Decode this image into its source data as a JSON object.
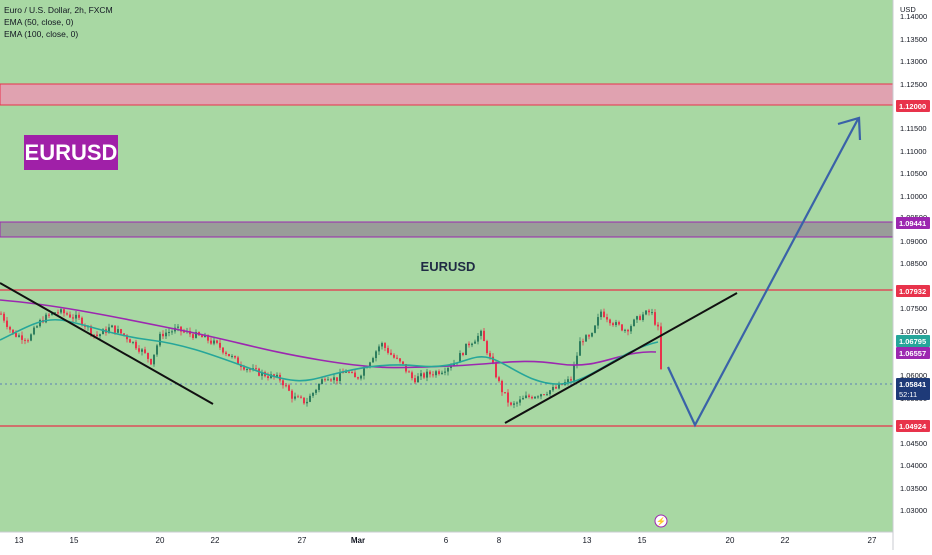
{
  "header": {
    "symbol_line": "Euro / U.S. Dollar, 2h, FXCM",
    "indicators": [
      "EMA (50, close, 0)",
      "EMA (100, close, 0)"
    ]
  },
  "title_badge": "EURUSD",
  "center_label": "EURUSD",
  "price_axis": {
    "currency": "USD",
    "ticks": [
      "1.14000",
      "1.13500",
      "1.13000",
      "1.12500",
      "1.11500",
      "1.11000",
      "1.10500",
      "1.10000",
      "1.09500",
      "1.09000",
      "1.08500",
      "1.07500",
      "1.07000",
      "1.06000",
      "1.05500",
      "1.04500",
      "1.04000",
      "1.03500",
      "1.03000"
    ]
  },
  "price_tags": {
    "resistance_top": "1.12000",
    "resistance_mid": "1.09441",
    "resistance_low": "1.07932",
    "ema_50": "1.06795",
    "ema_100": "1.06557",
    "last_price": "1.05841",
    "countdown": "52:11",
    "support": "1.04924"
  },
  "time_axis": {
    "labels": [
      "13",
      "15",
      "20",
      "22",
      "27",
      "Mar",
      "6",
      "8",
      "13",
      "15",
      "20",
      "22",
      "27"
    ]
  },
  "colors": {
    "background_green": "#a8d8a3",
    "resistance_zone": "#e0a2b0",
    "gray_zone": "#999d99",
    "level_line": "#e8334b",
    "purple": "#9c27b0",
    "ema_50": "#26a69a",
    "ema_100": "#9c27b0",
    "up_candle": "#2e7d5e",
    "down_candle": "#e8334b",
    "projection_arrow": "#3a62a8",
    "trend_line": "#111111"
  },
  "chart_data": {
    "type": "candlestick",
    "title": "Euro / U.S. Dollar, 2h, FXCM",
    "ylabel": "USD",
    "ylim": [
      1.025,
      1.144
    ],
    "levels": [
      1.12,
      1.09441,
      1.07932,
      1.04924
    ],
    "zones": [
      {
        "from": 1.12,
        "to": 1.124
      },
      {
        "from": 1.0913,
        "to": 1.0946
      }
    ],
    "series": [
      {
        "name": "EMA (50, close, 0)",
        "last": 1.06795
      },
      {
        "name": "EMA (100, close, 0)",
        "last": 1.06557
      }
    ],
    "last_price": 1.05841,
    "close_path": [
      [
        0,
        1.074
      ],
      [
        12,
        1.0695
      ],
      [
        28,
        1.0685
      ],
      [
        40,
        1.0725
      ],
      [
        55,
        1.0745
      ],
      [
        65,
        1.074
      ],
      [
        80,
        1.0725
      ],
      [
        95,
        1.069
      ],
      [
        110,
        1.071
      ],
      [
        125,
        1.069
      ],
      [
        140,
        1.066
      ],
      [
        150,
        1.0635
      ],
      [
        160,
        1.0695
      ],
      [
        175,
        1.0705
      ],
      [
        190,
        1.0695
      ],
      [
        205,
        1.0685
      ],
      [
        220,
        1.0665
      ],
      [
        235,
        1.0635
      ],
      [
        250,
        1.0615
      ],
      [
        265,
        1.0605
      ],
      [
        280,
        1.0595
      ],
      [
        292,
        1.0555
      ],
      [
        305,
        1.0545
      ],
      [
        315,
        1.0575
      ],
      [
        325,
        1.0605
      ],
      [
        335,
        1.0595
      ],
      [
        345,
        1.0615
      ],
      [
        355,
        1.0595
      ],
      [
        368,
        1.0635
      ],
      [
        380,
        1.0675
      ],
      [
        392,
        1.0645
      ],
      [
        402,
        1.0625
      ],
      [
        412,
        1.0595
      ],
      [
        425,
        1.0605
      ],
      [
        440,
        1.0615
      ],
      [
        455,
        1.0635
      ],
      [
        468,
        1.0675
      ],
      [
        480,
        1.0695
      ],
      [
        490,
        1.0635
      ],
      [
        500,
        1.0575
      ],
      [
        510,
        1.0535
      ],
      [
        525,
        1.0555
      ],
      [
        540,
        1.0565
      ],
      [
        555,
        1.0575
      ],
      [
        570,
        1.0595
      ],
      [
        580,
        1.0685
      ],
      [
        590,
        1.0685
      ],
      [
        600,
        1.0745
      ],
      [
        615,
        1.0715
      ],
      [
        625,
        1.0705
      ],
      [
        640,
        1.0735
      ],
      [
        650,
        1.0745
      ],
      [
        657,
        1.0705
      ],
      [
        661,
        1.0585
      ]
    ],
    "projection": [
      {
        "x": "15",
        "y": 1.0612
      },
      {
        "x": "18",
        "y": 1.0492
      },
      {
        "x": "24",
        "y": 1.118
      }
    ]
  }
}
